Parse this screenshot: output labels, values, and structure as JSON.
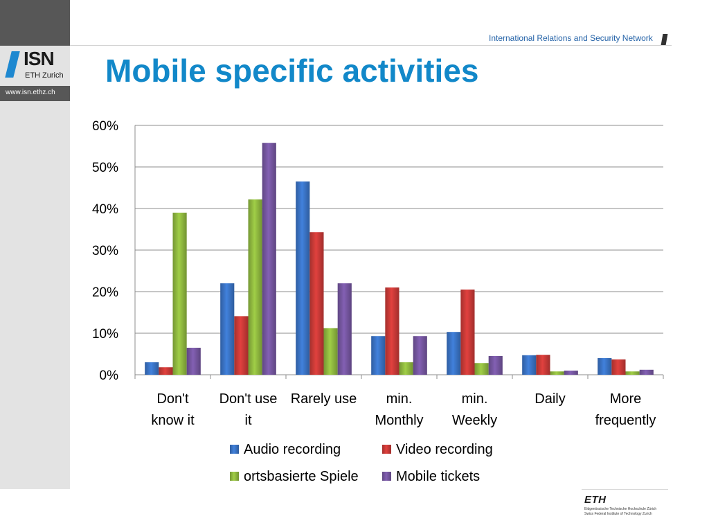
{
  "header": {
    "network": "International Relations and Security Network",
    "slide_title": "Mobile specific activities"
  },
  "sidebar": {
    "logo_isn": "ISN",
    "logo_eth": "ETH Zurich",
    "url": "www.isn.ethz.ch"
  },
  "footer": {
    "eth_logo": "ETH",
    "eth_line1": "Eidgenössische Technische Hochschule Zürich",
    "eth_line2": "Swiss Federal Institute of Technology Zurich"
  },
  "colors": {
    "title": "#1288c9",
    "sidebar_dark": "#575757",
    "sidebar_light": "#e3e3e3"
  },
  "chart_data": {
    "type": "bar",
    "title": "",
    "xlabel": "",
    "ylabel": "",
    "ylim": [
      0,
      0.6
    ],
    "yticks": [
      "0%",
      "10%",
      "20%",
      "30%",
      "40%",
      "50%",
      "60%"
    ],
    "grid": true,
    "legend_position": "bottom",
    "categories": [
      [
        "Don't",
        "know it"
      ],
      [
        "Don't use",
        "it"
      ],
      [
        "Rarely use"
      ],
      [
        "min.",
        "Monthly"
      ],
      [
        "min.",
        "Weekly"
      ],
      [
        "Daily"
      ],
      [
        "More",
        "frequently"
      ]
    ],
    "series": [
      {
        "name": "Audio recording",
        "color": "#3a73c4",
        "values": [
          0.03,
          0.22,
          0.465,
          0.093,
          0.103,
          0.047,
          0.04
        ]
      },
      {
        "name": "Video recording",
        "color": "#c93a37",
        "values": [
          0.018,
          0.141,
          0.343,
          0.21,
          0.205,
          0.048,
          0.037
        ]
      },
      {
        "name": "ortsbasierte Spiele",
        "color": "#8fb83f",
        "values": [
          0.39,
          0.422,
          0.112,
          0.03,
          0.028,
          0.008,
          0.008
        ]
      },
      {
        "name": "Mobile tickets",
        "color": "#7556a0",
        "values": [
          0.065,
          0.558,
          0.22,
          0.093,
          0.045,
          0.01,
          0.012
        ]
      }
    ]
  }
}
